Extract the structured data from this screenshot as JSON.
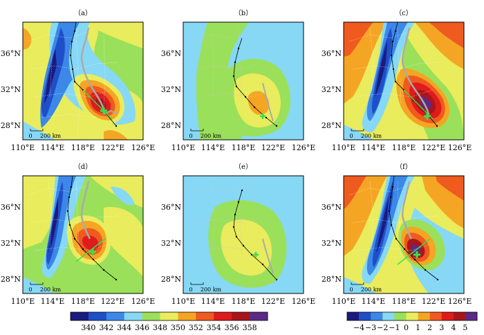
{
  "panels": [
    {
      "label": "（a）",
      "field": "theta"
    },
    {
      "label": "（b）",
      "field": "theta"
    },
    {
      "label": "（c）",
      "field": "anomaly"
    },
    {
      "label": "（d）",
      "field": "theta"
    },
    {
      "label": "（e）",
      "field": "theta"
    },
    {
      "label": "（f）",
      "field": "anomaly"
    }
  ],
  "lat_ticks": [
    "36°N",
    "32°N",
    "28°N"
  ],
  "lon_ticks": [
    "110°E",
    "114°E",
    "118°E",
    "122°E",
    "126°E"
  ],
  "scale_bar": {
    "zero": "0",
    "distance": "200 km"
  },
  "colorbar_left": {
    "labels": [
      "340",
      "342",
      "344",
      "346",
      "348",
      "350",
      "352",
      "354",
      "356",
      "358"
    ],
    "colors": [
      "#1b1a7e",
      "#1f4fc8",
      "#3b88e8",
      "#86d8f5",
      "#9be05a",
      "#e9ec5c",
      "#f5a524",
      "#ef5a1f",
      "#e01b1b",
      "#a8161c",
      "#5b2a86"
    ]
  },
  "colorbar_right": {
    "labels": [
      "−4",
      "−3",
      "−2",
      "−1",
      "0",
      "1",
      "2",
      "3",
      "4",
      "5"
    ],
    "colors": [
      "#1b1a7e",
      "#1f4fc8",
      "#3b88e8",
      "#86d8f5",
      "#9be05a",
      "#e9ec5c",
      "#f5a524",
      "#ef5a1f",
      "#e01b1b",
      "#a8161c",
      "#5b2a86"
    ]
  },
  "palette": {
    "land_bg": "#e9ec5c",
    "ocean_bg": "#86d8f5",
    "track": "#000000",
    "path_gray": "#aaaaaa",
    "marker": "#39e04a"
  }
}
